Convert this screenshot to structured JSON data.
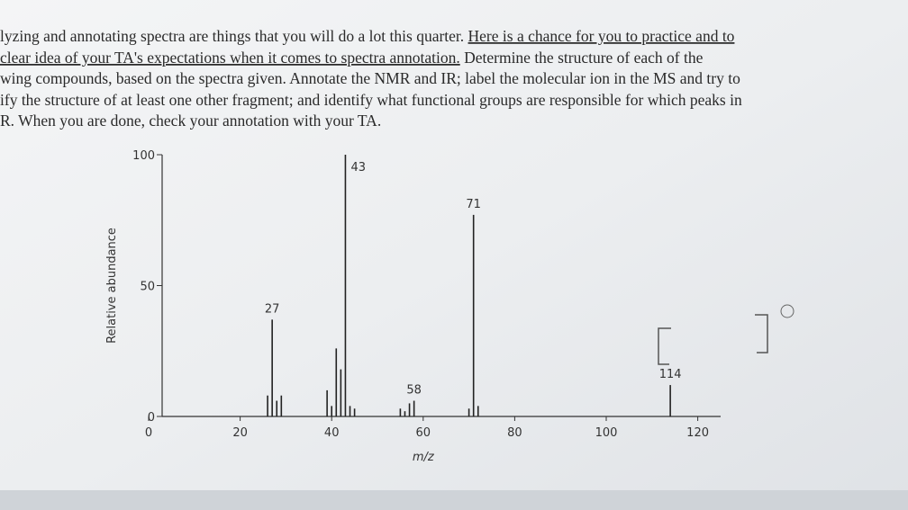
{
  "document": {
    "lines": [
      [
        {
          "text": "lyzing and annotating spectra are things that you will do a lot this quarter. "
        },
        {
          "text": "Here is a chance for you to practice and to",
          "underline": true
        }
      ],
      [
        {
          "text": " clear idea of your TA's expectations when it comes to spectra annotation.",
          "underline": true
        },
        {
          "text": " Determine the structure of each of the"
        }
      ],
      [
        {
          "text": "wing compounds, based on the spectra given. Annotate the NMR and IR; label the molecular ion in the MS and try to"
        }
      ],
      [
        {
          "text": "ify the structure of at least one other fragment; and identify what functional groups are responsible for which peaks in"
        }
      ],
      [
        {
          "text": "R. When you are done, check your annotation with your TA."
        }
      ]
    ]
  },
  "chart_data": {
    "type": "bar",
    "xlabel": "m/z",
    "ylabel": "Relative abundance",
    "x": [
      26,
      27,
      28,
      29,
      39,
      40,
      41,
      42,
      43,
      44,
      45,
      55,
      56,
      57,
      58,
      70,
      71,
      72,
      114
    ],
    "values": [
      8,
      37,
      6,
      8,
      10,
      4,
      26,
      18,
      100,
      4,
      3,
      3,
      2,
      5,
      6,
      3,
      77,
      4,
      12
    ],
    "labeled": [
      false,
      true,
      false,
      false,
      false,
      false,
      false,
      false,
      true,
      false,
      false,
      false,
      false,
      false,
      true,
      false,
      true,
      false,
      true
    ],
    "color": "#222222",
    "xlim": [
      0,
      125
    ],
    "xticks": [
      0,
      20,
      40,
      60,
      80,
      100,
      120
    ],
    "ylim": [
      0,
      100
    ],
    "yticks": [
      0,
      50,
      100
    ]
  }
}
